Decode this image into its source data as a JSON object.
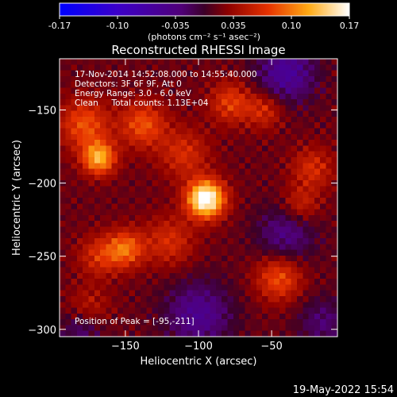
{
  "chart_data": {
    "type": "heatmap",
    "title": "Reconstructed RHESSI Image",
    "xlabel": "Heliocentric X (arcsec)",
    "ylabel": "Heliocentric Y (arcsec)",
    "xlim": [
      -195,
      -5
    ],
    "ylim": [
      -305,
      -115
    ],
    "x_ticks": [
      -150,
      -100,
      -50
    ],
    "y_ticks": [
      -150,
      -200,
      -250,
      -300
    ],
    "colorbar": {
      "ticks": [
        "-0.17",
        "-0.10",
        "-0.035",
        "0.035",
        "0.10",
        "0.17"
      ],
      "range": [
        -0.17,
        0.17
      ],
      "unit_label": "(photons cm⁻² s⁻¹ asec⁻²)"
    },
    "info_lines": [
      "17-Nov-2014 14:52:08.000 to 14:55:40.000",
      "Detectors: 3F 6F 9F, Att 0",
      "Energy Range: 3.0 - 6.0 keV",
      "Clean     Total counts: 1.13E+04"
    ],
    "peak_text": "Position of Peak = [-95,-211]",
    "peak": {
      "x": -95,
      "y": -211,
      "value": 0.17
    },
    "sources": [
      {
        "x": -95,
        "y": -211,
        "amp": 0.17,
        "sigma": 9
      },
      {
        "x": -168,
        "y": -183,
        "amp": 0.11,
        "sigma": 8
      },
      {
        "x": -178,
        "y": -160,
        "amp": 0.07,
        "sigma": 12
      },
      {
        "x": -138,
        "y": -160,
        "amp": 0.07,
        "sigma": 11
      },
      {
        "x": -150,
        "y": -245,
        "amp": 0.08,
        "sigma": 9
      },
      {
        "x": -168,
        "y": -250,
        "amp": 0.05,
        "sigma": 10
      },
      {
        "x": -78,
        "y": -145,
        "amp": 0.06,
        "sigma": 10
      },
      {
        "x": -55,
        "y": -150,
        "amp": 0.05,
        "sigma": 9
      },
      {
        "x": -45,
        "y": -265,
        "amp": 0.07,
        "sigma": 11
      },
      {
        "x": -22,
        "y": -190,
        "amp": 0.05,
        "sigma": 10
      },
      {
        "x": -30,
        "y": -215,
        "amp": 0.045,
        "sigma": 9
      },
      {
        "x": -110,
        "y": -180,
        "amp": 0.05,
        "sigma": 12
      },
      {
        "x": -120,
        "y": -240,
        "amp": 0.05,
        "sigma": 12
      },
      {
        "x": -175,
        "y": -285,
        "amp": 0.035,
        "sigma": 10
      },
      {
        "x": -100,
        "y": -290,
        "amp": -0.06,
        "sigma": 16
      },
      {
        "x": -40,
        "y": -125,
        "amp": -0.07,
        "sigma": 14
      },
      {
        "x": -40,
        "y": -235,
        "amp": -0.05,
        "sigma": 14
      },
      {
        "x": -180,
        "y": -300,
        "amp": -0.04,
        "sigma": 10
      },
      {
        "x": -15,
        "y": -295,
        "amp": -0.04,
        "sigma": 12
      }
    ]
  },
  "footer_timestamp": "19-May-2022 15:54"
}
